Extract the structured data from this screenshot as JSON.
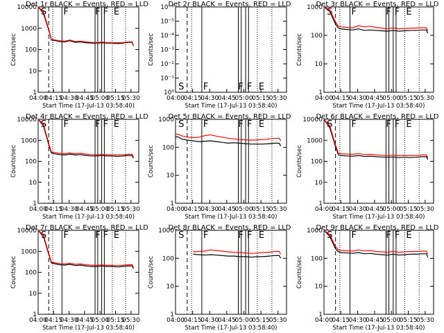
{
  "x_ticks": [
    "04:00",
    "04:15",
    "04:30",
    "04:45",
    "05:00",
    "05:15",
    "05:30"
  ],
  "x_axis_label": "Start Time (17-Jul-13 03:58:40)",
  "y_axis_label": "Counts/sec",
  "colors": {
    "events": "#000000",
    "lld": "#ff0000"
  },
  "chart_data": [
    {
      "type": "line",
      "title": "Det 1r BLACK = Events, RED = LLD",
      "xlabel": "Start Time (17-Jul-13 03:58:40)",
      "ylabel": "Counts/sec",
      "log_y": true,
      "yticks": [
        "1",
        "10",
        "100",
        "1000",
        "10000"
      ],
      "ylim": [
        1,
        10000
      ],
      "xlim_min": [
        0,
        40
      ],
      "markers": [
        {
          "t": "S",
          "x": 0.5
        },
        {
          "t": "F",
          "x": 9
        },
        {
          "t": "F",
          "x": 21
        },
        {
          "t": "F",
          "x": 24
        },
        {
          "t": "E",
          "x": 28
        }
      ],
      "series": [
        {
          "name": "Events",
          "t": [
            0,
            2,
            4,
            5,
            6,
            8,
            10,
            12,
            14,
            16,
            18,
            20,
            22,
            24,
            26,
            28,
            30,
            32,
            34,
            35.5,
            36
          ],
          "v": [
            10000,
            5000,
            800,
            280,
            270,
            240,
            230,
            260,
            220,
            230,
            210,
            200,
            200,
            210,
            200,
            200,
            190,
            200,
            220,
            220,
            150
          ]
        },
        {
          "name": "LLD",
          "t": [
            0,
            2,
            4,
            5,
            6,
            8,
            10,
            12,
            14,
            16,
            18,
            20,
            22,
            24,
            26,
            28,
            30,
            32,
            34,
            35.5,
            36
          ],
          "v": [
            10000,
            6000,
            900,
            300,
            290,
            260,
            250,
            280,
            240,
            250,
            230,
            220,
            215,
            225,
            215,
            215,
            210,
            215,
            230,
            230,
            160
          ]
        }
      ]
    },
    {
      "type": "line",
      "title": "Det 2r BLACK = Events, RED = LLD",
      "xlabel": "Start Time (17-Jul-13 03:58:40)",
      "ylabel": "Counts/sec",
      "log_y": true,
      "yticks": [
        "10⁰",
        "10⁻¹",
        "10⁻²",
        "10⁻³",
        "10⁻⁴",
        "10⁻⁵",
        "10⁻⁶"
      ],
      "ylim": [
        1e-06,
        1
      ],
      "xlim_min": [
        0,
        40
      ],
      "markers": [
        {
          "t": "S",
          "x": 0.5
        },
        {
          "t": "F",
          "x": 9
        },
        {
          "t": "F",
          "x": 21
        },
        {
          "t": "F",
          "x": 24
        },
        {
          "t": "E",
          "x": 28
        }
      ],
      "series": []
    },
    {
      "type": "line",
      "title": "Det 3r BLACK = Events, RED = LLD",
      "xlabel": "Start Time (17-Jul-13 03:58:40)",
      "ylabel": "Counts/sec",
      "log_y": true,
      "yticks": [
        "1",
        "10",
        "100",
        "1000"
      ],
      "ylim": [
        1,
        1000
      ],
      "xlim_min": [
        0,
        40
      ],
      "markers": [
        {
          "t": "S",
          "x": 0.5
        },
        {
          "t": "F",
          "x": 9
        },
        {
          "t": "F",
          "x": 21
        },
        {
          "t": "F",
          "x": 24
        },
        {
          "t": "E",
          "x": 28
        }
      ],
      "series": [
        {
          "name": "Events",
          "t": [
            0,
            2,
            4,
            5,
            6,
            8,
            10,
            12,
            14,
            16,
            18,
            20,
            22,
            24,
            26,
            28,
            30,
            32,
            34,
            35.5,
            36
          ],
          "v": [
            1000,
            700,
            250,
            180,
            170,
            160,
            155,
            170,
            150,
            155,
            150,
            145,
            140,
            150,
            140,
            145,
            150,
            150,
            155,
            155,
            120
          ]
        },
        {
          "name": "LLD",
          "t": [
            0,
            2,
            4,
            5,
            6,
            8,
            10,
            12,
            14,
            16,
            18,
            20,
            22,
            24,
            26,
            28,
            30,
            32,
            34,
            35.5,
            36
          ],
          "v": [
            1000,
            800,
            300,
            210,
            200,
            190,
            185,
            220,
            200,
            210,
            190,
            180,
            170,
            185,
            170,
            175,
            180,
            180,
            185,
            185,
            150
          ]
        }
      ]
    },
    {
      "type": "line",
      "title": "Det 4r BLACK = Events, RED = LLD",
      "xlabel": "Start Time (17-Jul-13 03:58:40)",
      "ylabel": "Counts/sec",
      "log_y": true,
      "yticks": [
        "1",
        "10",
        "100",
        "1000",
        "10000"
      ],
      "ylim": [
        1,
        10000
      ],
      "xlim_min": [
        0,
        40
      ],
      "markers": [
        {
          "t": "S",
          "x": 0.5
        },
        {
          "t": "F",
          "x": 9
        },
        {
          "t": "F",
          "x": 21
        },
        {
          "t": "F",
          "x": 24
        },
        {
          "t": "E",
          "x": 28
        }
      ],
      "series": [
        {
          "name": "Events",
          "t": [
            0,
            2,
            4,
            5,
            6,
            8,
            10,
            12,
            14,
            16,
            18,
            20,
            22,
            24,
            26,
            28,
            30,
            32,
            34,
            35.5,
            36
          ],
          "v": [
            10000,
            5000,
            600,
            250,
            230,
            210,
            200,
            220,
            200,
            210,
            190,
            180,
            180,
            190,
            180,
            180,
            170,
            180,
            190,
            190,
            140
          ]
        },
        {
          "name": "LLD",
          "t": [
            0,
            2,
            4,
            5,
            6,
            8,
            10,
            12,
            14,
            16,
            18,
            20,
            22,
            24,
            26,
            28,
            30,
            32,
            34,
            35.5,
            36
          ],
          "v": [
            10000,
            6000,
            700,
            280,
            260,
            240,
            230,
            250,
            230,
            240,
            220,
            210,
            205,
            215,
            205,
            205,
            200,
            205,
            215,
            215,
            160
          ]
        }
      ]
    },
    {
      "type": "line",
      "title": "Det 5r BLACK = Events, RED = LLD",
      "xlabel": "Start Time (17-Jul-13 03:58:40)",
      "ylabel": "Counts/sec",
      "log_y": true,
      "yticks": [
        "1",
        "10",
        "100",
        "1000"
      ],
      "ylim": [
        1,
        1000
      ],
      "xlim_min": [
        0,
        40
      ],
      "markers": [
        {
          "t": "S",
          "x": 0.5
        },
        {
          "t": "F",
          "x": 9
        },
        {
          "t": "F",
          "x": 21
        },
        {
          "t": "F",
          "x": 24
        },
        {
          "t": "E",
          "x": 28
        }
      ],
      "series": [
        {
          "name": "Events",
          "t": [
            0,
            1,
            2,
            4,
            6,
            8,
            10,
            12,
            14,
            16,
            18,
            20,
            22,
            24,
            26,
            28,
            30,
            32,
            34,
            35.5,
            36
          ],
          "v": [
            240,
            235,
            200,
            180,
            170,
            160,
            165,
            170,
            160,
            150,
            140,
            145,
            140,
            135,
            130,
            130,
            130,
            135,
            140,
            140,
            110
          ]
        },
        {
          "name": "LLD",
          "t": [
            0,
            1,
            2,
            4,
            6,
            8,
            10,
            12,
            14,
            16,
            18,
            20,
            22,
            24,
            26,
            28,
            30,
            32,
            34,
            35.5,
            36
          ],
          "v": [
            300,
            290,
            260,
            230,
            220,
            230,
            260,
            280,
            250,
            230,
            210,
            200,
            190,
            185,
            180,
            185,
            190,
            200,
            210,
            210,
            170
          ]
        }
      ]
    },
    {
      "type": "line",
      "title": "Det 6r BLACK = Events, RED = LLD",
      "xlabel": "Start Time (17-Jul-13 03:58:40)",
      "ylabel": "Counts/sec",
      "log_y": true,
      "yticks": [
        "1",
        "10",
        "100",
        "1000",
        "10000"
      ],
      "ylim": [
        1,
        10000
      ],
      "xlim_min": [
        0,
        40
      ],
      "markers": [
        {
          "t": "S",
          "x": 0.5
        },
        {
          "t": "F",
          "x": 9
        },
        {
          "t": "F",
          "x": 21
        },
        {
          "t": "F",
          "x": 24
        },
        {
          "t": "E",
          "x": 28
        }
      ],
      "series": [
        {
          "name": "Events",
          "t": [
            0,
            2,
            4,
            5,
            6,
            8,
            10,
            12,
            14,
            16,
            18,
            20,
            22,
            24,
            26,
            28,
            30,
            32,
            34,
            35.5,
            36
          ],
          "v": [
            10000,
            4000,
            500,
            200,
            190,
            180,
            175,
            190,
            170,
            175,
            165,
            160,
            155,
            160,
            150,
            155,
            150,
            155,
            165,
            165,
            120
          ]
        },
        {
          "name": "LLD",
          "t": [
            0,
            2,
            4,
            5,
            6,
            8,
            10,
            12,
            14,
            16,
            18,
            20,
            22,
            24,
            26,
            28,
            30,
            32,
            34,
            35.5,
            36
          ],
          "v": [
            10000,
            5000,
            600,
            240,
            230,
            220,
            215,
            235,
            210,
            215,
            200,
            195,
            185,
            195,
            185,
            190,
            185,
            190,
            200,
            200,
            150
          ]
        }
      ]
    },
    {
      "type": "line",
      "title": "Det 7r BLACK = Events, RED = LLD",
      "xlabel": "Start Time (17-Jul-13 03:58:40)",
      "ylabel": "Counts/sec",
      "log_y": true,
      "yticks": [
        "1",
        "10",
        "100",
        "1000",
        "10000"
      ],
      "ylim": [
        1,
        10000
      ],
      "xlim_min": [
        0,
        40
      ],
      "markers": [
        {
          "t": "S",
          "x": 0.5
        },
        {
          "t": "F",
          "x": 9
        },
        {
          "t": "F",
          "x": 21
        },
        {
          "t": "F",
          "x": 24
        },
        {
          "t": "E",
          "x": 28
        }
      ],
      "series": [
        {
          "name": "Events",
          "t": [
            0,
            2,
            4,
            5,
            6,
            8,
            10,
            12,
            14,
            16,
            18,
            20,
            22,
            24,
            26,
            28,
            30,
            32,
            34,
            35.5,
            36
          ],
          "v": [
            10000,
            5000,
            700,
            280,
            260,
            230,
            220,
            240,
            210,
            220,
            200,
            190,
            190,
            200,
            190,
            190,
            180,
            190,
            200,
            200,
            150
          ]
        },
        {
          "name": "LLD",
          "t": [
            0,
            2,
            4,
            5,
            6,
            8,
            10,
            12,
            14,
            16,
            18,
            20,
            22,
            24,
            26,
            28,
            30,
            32,
            34,
            35.5,
            36
          ],
          "v": [
            10000,
            6000,
            800,
            310,
            290,
            260,
            250,
            270,
            240,
            250,
            230,
            220,
            215,
            225,
            215,
            215,
            210,
            215,
            230,
            230,
            170
          ]
        }
      ]
    },
    {
      "type": "line",
      "title": "Det 8r BLACK = Events, RED = LLD",
      "xlabel": "Start Time (17-Jul-13 03:58:40)",
      "ylabel": "Counts/sec",
      "log_y": true,
      "yticks": [
        "1",
        "10",
        "100",
        "1000"
      ],
      "ylim": [
        1,
        1000
      ],
      "xlim_min": [
        0,
        40
      ],
      "markers": [
        {
          "t": "S",
          "x": 0.5
        },
        {
          "t": "F",
          "x": 9
        },
        {
          "t": "F",
          "x": 21
        },
        {
          "t": "F",
          "x": 24
        },
        {
          "t": "E",
          "x": 28
        }
      ],
      "series": [
        {
          "name": "Events",
          "t": [
            6,
            8,
            10,
            12,
            14,
            16,
            18,
            20,
            22,
            24,
            26,
            28,
            30,
            32,
            34,
            35.5,
            36
          ],
          "v": [
            140,
            135,
            130,
            135,
            130,
            125,
            120,
            120,
            115,
            115,
            110,
            115,
            115,
            120,
            125,
            125,
            100
          ]
        },
        {
          "name": "LLD",
          "t": [
            6,
            8,
            10,
            12,
            14,
            16,
            18,
            20,
            22,
            24,
            26,
            28,
            30,
            32,
            34,
            35.5,
            36
          ],
          "v": [
            170,
            175,
            180,
            200,
            190,
            180,
            170,
            165,
            160,
            155,
            150,
            155,
            160,
            165,
            175,
            175,
            140
          ]
        }
      ]
    },
    {
      "type": "line",
      "title": "Det 9r BLACK = Events, RED = LLD",
      "xlabel": "Start Time (17-Jul-13 03:58:40)",
      "ylabel": "Counts/sec",
      "log_y": true,
      "yticks": [
        "1",
        "10",
        "100",
        "1000"
      ],
      "ylim": [
        1,
        1000
      ],
      "xlim_min": [
        0,
        40
      ],
      "markers": [
        {
          "t": "S",
          "x": 0.5
        },
        {
          "t": "F",
          "x": 9
        },
        {
          "t": "F",
          "x": 21
        },
        {
          "t": "F",
          "x": 24
        },
        {
          "t": "E",
          "x": 28
        }
      ],
      "series": [
        {
          "name": "Events",
          "t": [
            0,
            2,
            4,
            5,
            6,
            8,
            10,
            12,
            14,
            16,
            18,
            20,
            22,
            24,
            26,
            28,
            30,
            32,
            34,
            35.5,
            36
          ],
          "v": [
            1000,
            600,
            220,
            170,
            160,
            155,
            150,
            160,
            145,
            150,
            140,
            135,
            130,
            140,
            130,
            135,
            140,
            140,
            145,
            145,
            110
          ]
        },
        {
          "name": "LLD",
          "t": [
            0,
            2,
            4,
            5,
            6,
            8,
            10,
            12,
            14,
            16,
            18,
            20,
            22,
            24,
            26,
            28,
            30,
            32,
            34,
            35.5,
            36
          ],
          "v": [
            1000,
            700,
            260,
            200,
            190,
            185,
            180,
            200,
            185,
            190,
            175,
            170,
            165,
            175,
            165,
            170,
            175,
            175,
            180,
            180,
            140
          ]
        }
      ]
    }
  ]
}
